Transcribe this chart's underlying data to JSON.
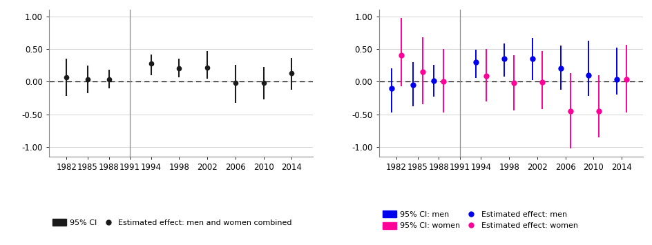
{
  "years": [
    1982,
    1985,
    1988,
    1994,
    1998,
    2002,
    2006,
    2010,
    2014
  ],
  "vline_x": 1991,
  "panel1": {
    "point": [
      0.07,
      0.03,
      0.04,
      0.28,
      0.2,
      0.22,
      -0.02,
      -0.02,
      0.13
    ],
    "ci_low": [
      -0.22,
      -0.18,
      -0.1,
      0.1,
      0.07,
      0.05,
      -0.32,
      -0.27,
      -0.12
    ],
    "ci_high": [
      0.35,
      0.25,
      0.18,
      0.42,
      0.35,
      0.47,
      0.26,
      0.23,
      0.36
    ]
  },
  "panel2_men": {
    "point": [
      -0.1,
      -0.05,
      0.01,
      0.3,
      0.35,
      0.35,
      0.2,
      0.1,
      0.04
    ],
    "ci_low": [
      -0.47,
      -0.38,
      -0.23,
      0.06,
      0.08,
      0.02,
      -0.12,
      -0.22,
      -0.2
    ],
    "ci_high": [
      0.2,
      0.3,
      0.26,
      0.49,
      0.58,
      0.67,
      0.55,
      0.63,
      0.52
    ]
  },
  "panel2_women": {
    "point": [
      0.4,
      0.15,
      0.0,
      0.09,
      -0.02,
      -0.01,
      -0.45,
      -0.45,
      0.04
    ],
    "ci_low": [
      -0.07,
      -0.35,
      -0.47,
      -0.3,
      -0.44,
      -0.42,
      -1.02,
      -0.85,
      -0.47
    ],
    "ci_high": [
      0.98,
      0.68,
      0.5,
      0.5,
      0.4,
      0.47,
      0.13,
      0.1,
      0.56
    ]
  },
  "color_black": "#1a1a1a",
  "color_blue": "#0000ee",
  "color_pink": "#ff0099",
  "ylim": [
    -1.15,
    1.1
  ],
  "yticks": [
    -1.0,
    -0.5,
    0.0,
    0.5,
    1.0
  ],
  "xticks": [
    1982,
    1985,
    1988,
    1991,
    1994,
    1998,
    2002,
    2006,
    2010,
    2014
  ],
  "background_color": "#ffffff"
}
